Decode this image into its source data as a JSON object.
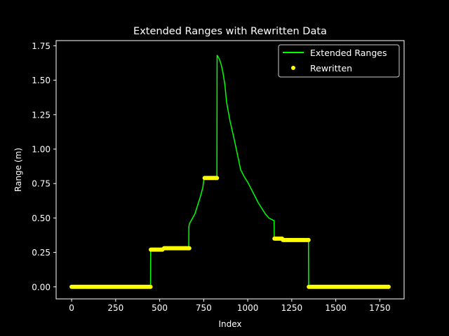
{
  "chart_data": {
    "type": "line",
    "title": "Extended Ranges with Rewritten Data",
    "xlabel": "Index",
    "ylabel": "Range (m)",
    "xlim": [
      -88,
      1888
    ],
    "ylim": [
      -0.0875,
      1.7875
    ],
    "xticks": [
      0,
      250,
      500,
      750,
      1000,
      1250,
      1500,
      1750
    ],
    "yticks": [
      0.0,
      0.25,
      0.5,
      0.75,
      1.0,
      1.25,
      1.5,
      1.75
    ],
    "xtick_labels": [
      "0",
      "250",
      "500",
      "750",
      "1000",
      "1250",
      "1500",
      "1750"
    ],
    "ytick_labels": [
      "0.00",
      "0.25",
      "0.50",
      "0.75",
      "1.00",
      "1.25",
      "1.50",
      "1.75"
    ],
    "grid": false,
    "legend": {
      "position": "top-right",
      "entries": [
        "Extended Ranges",
        "Rewritten"
      ]
    },
    "colors": {
      "background": "#000000",
      "line": "#00ff00",
      "points": "#ffff00",
      "text": "#ffffff"
    },
    "series": [
      {
        "name": "Extended Ranges",
        "kind": "line",
        "x": [
          0,
          448,
          449,
          450,
          500,
          540,
          600,
          665,
          666,
          670,
          700,
          730,
          745,
          748,
          752,
          760,
          800,
          825,
          826,
          827,
          840,
          850,
          860,
          870,
          880,
          890,
          900,
          920,
          940,
          960,
          980,
          990,
          1000,
          1020,
          1040,
          1060,
          1080,
          1100,
          1120,
          1150,
          1151,
          1152,
          1200,
          1250,
          1300,
          1345,
          1346,
          1350,
          1500,
          1800
        ],
        "y": [
          0,
          0,
          0.27,
          0.27,
          0.27,
          0.28,
          0.28,
          0.28,
          0.44,
          0.46,
          0.53,
          0.65,
          0.72,
          0.75,
          0.79,
          0.79,
          0.79,
          0.79,
          1.68,
          1.68,
          1.65,
          1.61,
          1.55,
          1.47,
          1.34,
          1.27,
          1.2,
          1.09,
          0.97,
          0.85,
          0.8,
          0.78,
          0.76,
          0.71,
          0.66,
          0.61,
          0.57,
          0.53,
          0.5,
          0.48,
          0.35,
          0.35,
          0.35,
          0.34,
          0.34,
          0.34,
          0,
          0,
          0,
          0
        ]
      },
      {
        "name": "Rewritten",
        "kind": "scatter",
        "segments": [
          {
            "x": [
              0,
              448
            ],
            "y": 0.0
          },
          {
            "x": [
              450,
              515
            ],
            "y": 0.27
          },
          {
            "x": [
              525,
              668
            ],
            "y": 0.28
          },
          {
            "x": [
              755,
              825
            ],
            "y": 0.79
          },
          {
            "x": [
              1152,
              1195
            ],
            "y": 0.35
          },
          {
            "x": [
              1200,
              1345
            ],
            "y": 0.34
          },
          {
            "x": [
              1347,
              1800
            ],
            "y": 0.0
          }
        ]
      }
    ]
  }
}
